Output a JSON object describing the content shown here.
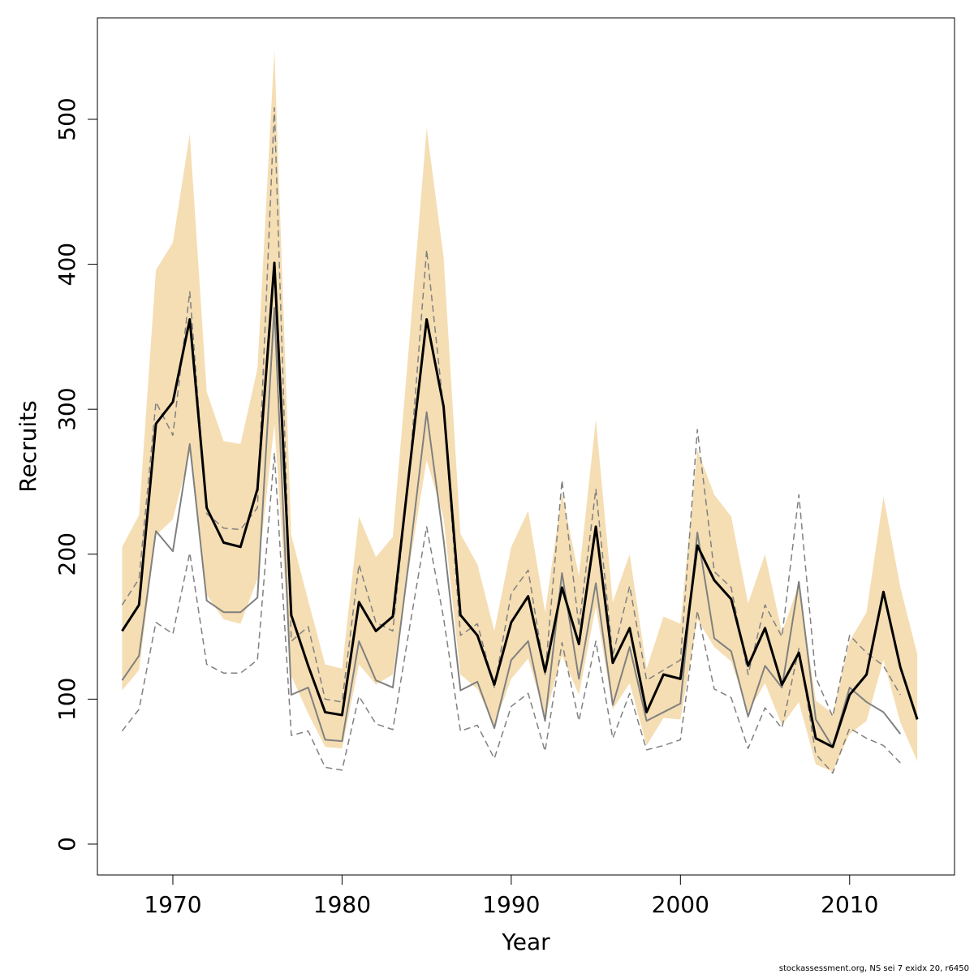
{
  "chart_data": {
    "type": "line",
    "x_label": "Year",
    "y_label": "Recruits",
    "footer": "stockassessment.org, NS sei 7 exidx 20, r6450",
    "x": [
      1967,
      1968,
      1969,
      1970,
      1971,
      1972,
      1973,
      1974,
      1975,
      1976,
      1977,
      1978,
      1979,
      1980,
      1981,
      1982,
      1983,
      1984,
      1985,
      1986,
      1987,
      1988,
      1989,
      1990,
      1991,
      1992,
      1993,
      1994,
      1995,
      1996,
      1997,
      1998,
      1999,
      2000,
      2001,
      2002,
      2003,
      2004,
      2005,
      2006,
      2007,
      2008,
      2009,
      2010,
      2011,
      2012,
      2013,
      2014
    ],
    "band": {
      "color": "#f5deb3",
      "upper": [
        205,
        227,
        396,
        415,
        490,
        312,
        278,
        276,
        328,
        548,
        213,
        168,
        124,
        121,
        226,
        198,
        212,
        350,
        494,
        405,
        214,
        193,
        147,
        205,
        230,
        160,
        242,
        185,
        293,
        167,
        200,
        121,
        157,
        152,
        272,
        241,
        226,
        166,
        200,
        146,
        179,
        99,
        90,
        140,
        160,
        240,
        177,
        131
      ],
      "lower": [
        106,
        120,
        213,
        224,
        270,
        172,
        155,
        152,
        183,
        290,
        116,
        90,
        67,
        66,
        124,
        110,
        117,
        193,
        265,
        225,
        117,
        107,
        82,
        114,
        128,
        88,
        130,
        103,
        164,
        93,
        111,
        68,
        87,
        86,
        155,
        136,
        126,
        91,
        111,
        82,
        98,
        55,
        50,
        76,
        85,
        127,
        84,
        57
      ]
    },
    "series": [
      {
        "color": "#808080",
        "style": "dashed",
        "width": 1.5,
        "values": [
          165,
          183,
          305,
          282,
          381,
          228,
          218,
          217,
          232,
          508,
          140,
          150,
          100,
          98,
          193,
          153,
          147,
          260,
          410,
          300,
          144,
          152,
          108,
          173,
          189,
          117,
          251,
          150,
          245,
          130,
          178,
          113,
          120,
          127,
          286,
          188,
          177,
          117,
          165,
          143,
          241,
          115,
          88,
          144,
          132,
          123,
          103,
          null
        ]
      },
      {
        "color": "#808080",
        "style": "dashed",
        "width": 1.5,
        "values": [
          78,
          93,
          153,
          145,
          201,
          124,
          118,
          118,
          127,
          270,
          75,
          78,
          53,
          51,
          102,
          83,
          79,
          150,
          219,
          156,
          78,
          82,
          59,
          95,
          104,
          64,
          139,
          85,
          140,
          73,
          104,
          65,
          68,
          72,
          161,
          107,
          101,
          66,
          94,
          80,
          135,
          62,
          49,
          80,
          73,
          68,
          56,
          null
        ]
      },
      {
        "color": "#808080",
        "style": "solid",
        "width": 2,
        "values": [
          113,
          130,
          216,
          202,
          276,
          168,
          160,
          160,
          170,
          370,
          103,
          108,
          72,
          71,
          140,
          113,
          108,
          200,
          298,
          210,
          106,
          112,
          80,
          127,
          140,
          85,
          187,
          114,
          180,
          96,
          136,
          85,
          91,
          97,
          215,
          142,
          133,
          88,
          123,
          108,
          181,
          86,
          67,
          108,
          98,
          91,
          76,
          null
        ]
      },
      {
        "color": "#000000",
        "style": "solid",
        "width": 3,
        "values": [
          147,
          165,
          290,
          305,
          362,
          232,
          208,
          205,
          245,
          401,
          158,
          123,
          91,
          89,
          167,
          147,
          157,
          260,
          362,
          302,
          158,
          144,
          110,
          153,
          171,
          119,
          177,
          138,
          219,
          125,
          149,
          91,
          117,
          114,
          206,
          182,
          169,
          123,
          149,
          110,
          132,
          73,
          67,
          103,
          117,
          174,
          122,
          86
        ]
      }
    ],
    "xlim": [
      1965.54,
      2016.2
    ],
    "ylim": [
      -21.3,
      570
    ],
    "xticks": [
      1970,
      1980,
      1990,
      2000,
      2010
    ],
    "yticks": [
      0,
      100,
      200,
      300,
      400,
      500
    ]
  }
}
